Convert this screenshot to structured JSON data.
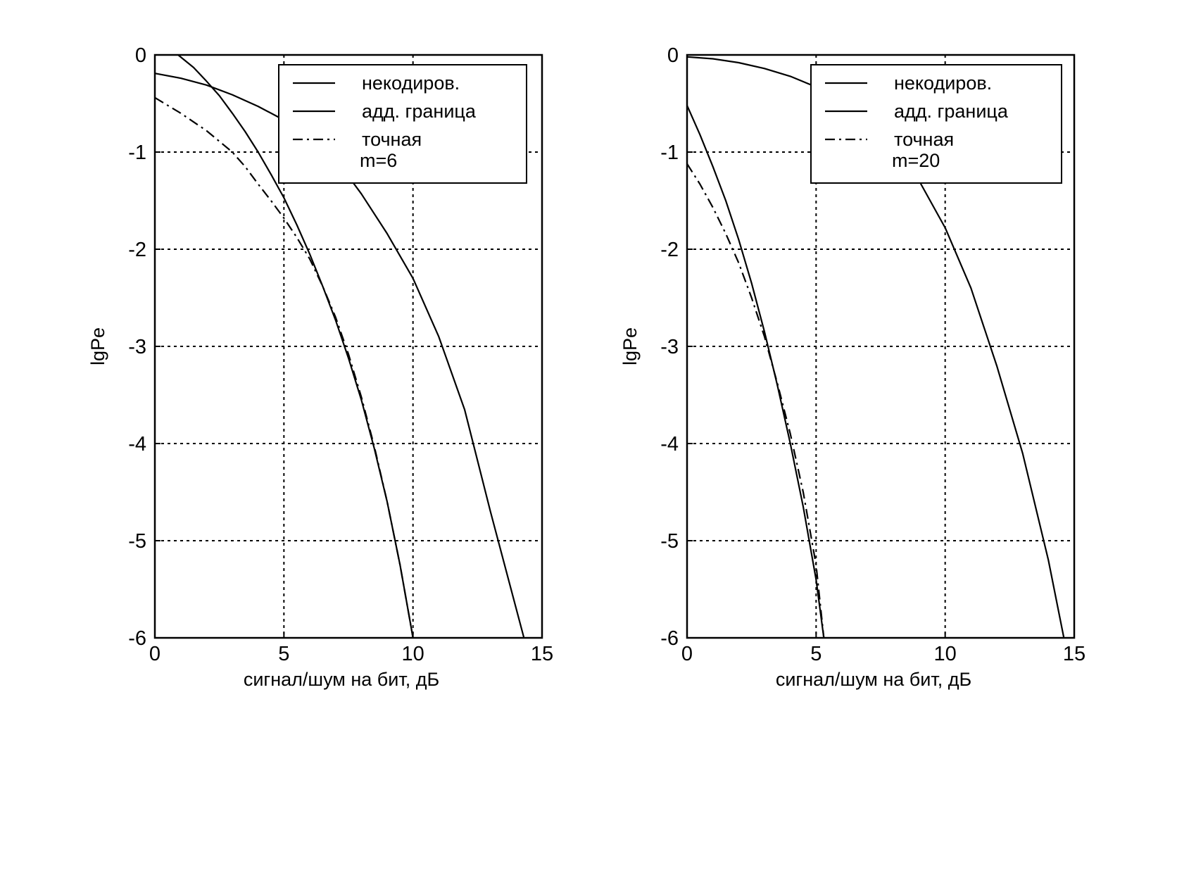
{
  "chart_data": [
    {
      "type": "line",
      "xlabel": "сигнал/шум на бит, дБ",
      "ylabel": "lgPe",
      "xlim": [
        0,
        15
      ],
      "ylim": [
        -6,
        0
      ],
      "xticks": [
        "0",
        "5",
        "10",
        "15"
      ],
      "yticks": [
        "0",
        "-1",
        "-2",
        "-3",
        "-4",
        "-5",
        "-6"
      ],
      "grid": true,
      "legend_position": "top-right",
      "legend": {
        "entries": [
          "некодиров.",
          "адд. граница",
          "точная"
        ],
        "note": "m=6"
      },
      "series": [
        {
          "name": "некодиров.",
          "style": "solid",
          "x": [
            0,
            1,
            2,
            3,
            4,
            5,
            6,
            7,
            8,
            9,
            10,
            11,
            12,
            13,
            14.3
          ],
          "y": [
            -0.19,
            -0.24,
            -0.31,
            -0.41,
            -0.53,
            -0.67,
            -0.85,
            -1.07,
            -1.43,
            -1.84,
            -2.3,
            -2.9,
            -3.65,
            -4.7,
            -6.0
          ]
        },
        {
          "name": "адд. граница",
          "style": "solid",
          "x": [
            0.9,
            1.5,
            2,
            2.5,
            3,
            3.5,
            4,
            4.5,
            5,
            5.5,
            6,
            6.5,
            7,
            7.5,
            8,
            8.5,
            9,
            9.5,
            10
          ],
          "y": [
            0,
            -0.13,
            -0.27,
            -0.42,
            -0.6,
            -0.79,
            -1.0,
            -1.23,
            -1.47,
            -1.75,
            -2.05,
            -2.38,
            -2.73,
            -3.12,
            -3.55,
            -4.05,
            -4.6,
            -5.25,
            -6.0
          ]
        },
        {
          "name": "точная",
          "style": "dashdot",
          "x": [
            0,
            1,
            2,
            3,
            3.5,
            4,
            4.5,
            5,
            5.5,
            6,
            6.5,
            7,
            7.5,
            8,
            8.5,
            9,
            9.5,
            10
          ],
          "y": [
            -0.44,
            -0.6,
            -0.78,
            -1.0,
            -1.15,
            -1.33,
            -1.5,
            -1.68,
            -1.88,
            -2.1,
            -2.38,
            -2.7,
            -3.08,
            -3.52,
            -4.03,
            -4.6,
            -5.25,
            -6.0
          ]
        }
      ]
    },
    {
      "type": "line",
      "xlabel": "сигнал/шум на бит, дБ",
      "ylabel": "lgPe",
      "xlim": [
        0,
        15
      ],
      "ylim": [
        -6,
        0
      ],
      "xticks": [
        "0",
        "5",
        "10",
        "15"
      ],
      "yticks": [
        "0",
        "-1",
        "-2",
        "-3",
        "-4",
        "-5",
        "-6"
      ],
      "grid": true,
      "legend_position": "top-right",
      "legend": {
        "entries": [
          "некодиров.",
          "адд. граница",
          "точная"
        ],
        "note": "m=20"
      },
      "series": [
        {
          "name": "некодиров.",
          "style": "solid",
          "x": [
            0,
            1,
            2,
            3,
            4,
            5,
            6,
            7,
            8,
            9,
            10,
            11,
            12,
            13,
            14,
            14.6
          ],
          "y": [
            -0.02,
            -0.04,
            -0.08,
            -0.14,
            -0.22,
            -0.33,
            -0.48,
            -0.68,
            -0.93,
            -1.3,
            -1.78,
            -2.4,
            -3.2,
            -4.1,
            -5.2,
            -6.0
          ]
        },
        {
          "name": "адд. граница",
          "style": "solid",
          "x": [
            0,
            0.5,
            1,
            1.5,
            2,
            2.5,
            3,
            3.5,
            4,
            4.5,
            5,
            5.3
          ],
          "y": [
            -0.52,
            -0.82,
            -1.15,
            -1.5,
            -1.9,
            -2.35,
            -2.85,
            -3.4,
            -4.0,
            -4.65,
            -5.4,
            -6.0
          ]
        },
        {
          "name": "точная",
          "style": "dashdot",
          "x": [
            0,
            0.5,
            1,
            1.5,
            2,
            2.5,
            3,
            3.5,
            4,
            4.5,
            5,
            5.3
          ],
          "y": [
            -1.12,
            -1.33,
            -1.57,
            -1.84,
            -2.14,
            -2.5,
            -2.9,
            -3.38,
            -3.9,
            -4.5,
            -5.25,
            -6.0
          ]
        }
      ]
    }
  ]
}
